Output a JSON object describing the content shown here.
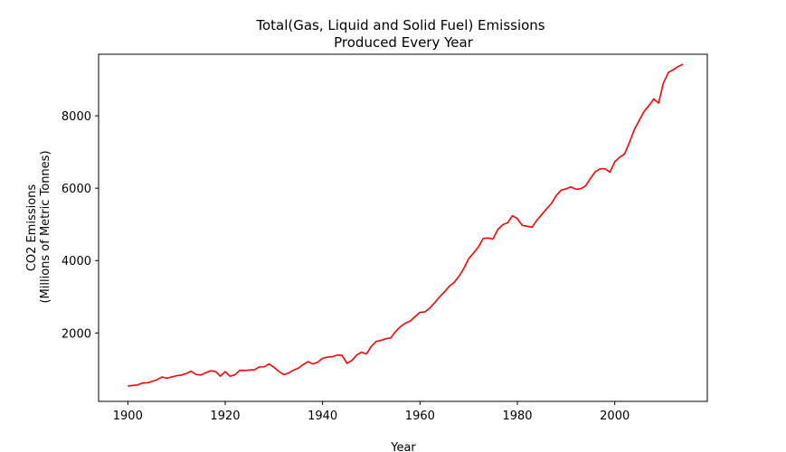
{
  "chart_data": {
    "type": "line",
    "title_line1": "Total(Gas, Liquid and Solid Fuel) Emissions",
    "title_line2": "Produced Every Year",
    "xlabel": "Year",
    "ylabel_line1": "CO2 Emissions",
    "ylabel_line2": "(Millions of Metric Tonnes)",
    "xlim": [
      1894,
      2019
    ],
    "ylim": [
      110,
      9700
    ],
    "x_ticks": [
      1900,
      1920,
      1940,
      1960,
      1980,
      2000
    ],
    "y_ticks": [
      2000,
      4000,
      6000,
      8000
    ],
    "grid": false,
    "series_color": "#ff0000",
    "series": [
      {
        "x": [
          1900,
          1901,
          1902,
          1903,
          1904,
          1905,
          1906,
          1907,
          1908,
          1909,
          1910,
          1911,
          1912,
          1913,
          1914,
          1915,
          1916,
          1917,
          1918,
          1919,
          1920,
          1921,
          1922,
          1923,
          1924,
          1925,
          1926,
          1927,
          1928,
          1929,
          1930,
          1931,
          1932,
          1933,
          1934,
          1935,
          1936,
          1937,
          1938,
          1939,
          1940,
          1941,
          1942,
          1943,
          1944,
          1945,
          1946,
          1947,
          1948,
          1949,
          1950,
          1951,
          1952,
          1953,
          1954,
          1955,
          1956,
          1957,
          1958,
          1959,
          1960,
          1961,
          1962,
          1963,
          1964,
          1965,
          1966,
          1967,
          1968,
          1969,
          1970,
          1971,
          1972,
          1973,
          1974,
          1975,
          1976,
          1977,
          1978,
          1979,
          1980,
          1981,
          1982,
          1983,
          1984,
          1985,
          1986,
          1987,
          1988,
          1989,
          1990,
          1991,
          1992,
          1993,
          1994,
          1995,
          1996,
          1997,
          1998,
          1999,
          2000,
          2001,
          2002,
          2003,
          2004,
          2005,
          2006,
          2007,
          2008,
          2009,
          2010,
          2011,
          2012,
          2013,
          2014
        ],
        "values": [
          534,
          552,
          566,
          617,
          624,
          663,
          707,
          784,
          750,
          785,
          819,
          836,
          879,
          943,
          850,
          838,
          901,
          955,
          936,
          806,
          932,
          803,
          845,
          970,
          963,
          975,
          983,
          1062,
          1065,
          1145,
          1053,
          940,
          847,
          893,
          973,
          1025,
          1124,
          1209,
          1142,
          1192,
          1299,
          1334,
          1342,
          1391,
          1383,
          1160,
          1238,
          1392,
          1469,
          1419,
          1630,
          1767,
          1795,
          1841,
          1865,
          2042,
          2177,
          2270,
          2330,
          2454,
          2569,
          2580,
          2686,
          2833,
          2995,
          3130,
          3288,
          3393,
          3566,
          3780,
          4053,
          4208,
          4376,
          4614,
          4623,
          4596,
          4864,
          4991,
          5043,
          5239,
          5155,
          4971,
          4947,
          4919,
          5113,
          5272,
          5429,
          5580,
          5800,
          5946,
          5981,
          6035,
          5968,
          5983,
          6062,
          6271,
          6453,
          6536,
          6535,
          6443,
          6728,
          6854,
          6944,
          7259,
          7612,
          7869,
          8117,
          8278,
          8463,
          8350,
          8914,
          9193,
          9273,
          9361,
          9423
        ]
      }
    ]
  }
}
